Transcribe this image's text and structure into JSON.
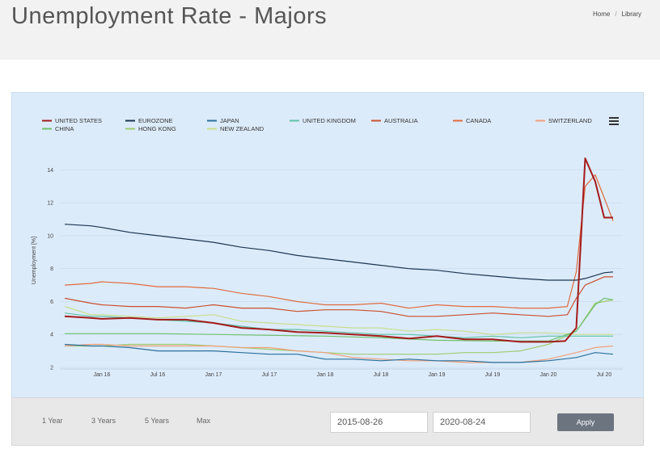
{
  "header": {
    "title": "Unemployment Rate - Majors",
    "breadcrumb": [
      "Home",
      "Library"
    ]
  },
  "controls": {
    "ranges": [
      "1 Year",
      "3 Years",
      "5 Years",
      "Max"
    ],
    "start_date": "2015-08-26",
    "end_date": "2020-08-24",
    "apply_label": "Apply"
  },
  "chart_data": {
    "type": "line",
    "title": "",
    "xlabel": "",
    "ylabel": "Unemployment [%]",
    "ylim": [
      2,
      15
    ],
    "xlim": [
      2015.667,
      2020.667
    ],
    "y_ticks": [
      2,
      4,
      6,
      8,
      10,
      12,
      14
    ],
    "x_ticks": [
      {
        "label": "Jan 16",
        "x": 2016.0
      },
      {
        "label": "Jul 16",
        "x": 2016.5
      },
      {
        "label": "Jan 17",
        "x": 2017.0
      },
      {
        "label": "Jul 17",
        "x": 2017.5
      },
      {
        "label": "Jan 18",
        "x": 2018.0
      },
      {
        "label": "Jul 18",
        "x": 2018.5
      },
      {
        "label": "Jan 19",
        "x": 2019.0
      },
      {
        "label": "Jul 19",
        "x": 2019.5
      },
      {
        "label": "Jan 20",
        "x": 2020.0
      },
      {
        "label": "Jul 20",
        "x": 2020.5
      }
    ],
    "grid": true,
    "legend_position": "top",
    "series": [
      {
        "name": "UNITED STATES",
        "color": "#a31b1b",
        "width": 2,
        "points": [
          [
            2015.667,
            5.1
          ],
          [
            2015.9,
            5.0
          ],
          [
            2016.0,
            4.95
          ],
          [
            2016.25,
            5.0
          ],
          [
            2016.5,
            4.9
          ],
          [
            2016.75,
            4.9
          ],
          [
            2017.0,
            4.7
          ],
          [
            2017.25,
            4.4
          ],
          [
            2017.5,
            4.3
          ],
          [
            2017.75,
            4.15
          ],
          [
            2018.0,
            4.1
          ],
          [
            2018.25,
            4.0
          ],
          [
            2018.5,
            3.9
          ],
          [
            2018.75,
            3.75
          ],
          [
            2019.0,
            3.9
          ],
          [
            2019.25,
            3.7
          ],
          [
            2019.5,
            3.7
          ],
          [
            2019.75,
            3.55
          ],
          [
            2020.0,
            3.55
          ],
          [
            2020.15,
            3.6
          ],
          [
            2020.25,
            4.4
          ],
          [
            2020.33,
            14.7
          ],
          [
            2020.42,
            13.3
          ],
          [
            2020.5,
            11.1
          ],
          [
            2020.58,
            11.1
          ]
        ]
      },
      {
        "name": "EUROZONE",
        "color": "#1a3550",
        "width": 1.2,
        "points": [
          [
            2015.667,
            10.7
          ],
          [
            2015.9,
            10.6
          ],
          [
            2016.0,
            10.5
          ],
          [
            2016.25,
            10.2
          ],
          [
            2016.5,
            10.0
          ],
          [
            2016.75,
            9.8
          ],
          [
            2017.0,
            9.6
          ],
          [
            2017.25,
            9.3
          ],
          [
            2017.5,
            9.1
          ],
          [
            2017.75,
            8.8
          ],
          [
            2018.0,
            8.6
          ],
          [
            2018.25,
            8.4
          ],
          [
            2018.5,
            8.2
          ],
          [
            2018.75,
            8.0
          ],
          [
            2019.0,
            7.9
          ],
          [
            2019.25,
            7.7
          ],
          [
            2019.5,
            7.55
          ],
          [
            2019.75,
            7.4
          ],
          [
            2020.0,
            7.3
          ],
          [
            2020.25,
            7.3
          ],
          [
            2020.33,
            7.4
          ],
          [
            2020.5,
            7.75
          ],
          [
            2020.58,
            7.8
          ]
        ]
      },
      {
        "name": "JAPAN",
        "color": "#2a6f9c",
        "width": 1.2,
        "points": [
          [
            2015.667,
            3.4
          ],
          [
            2015.9,
            3.3
          ],
          [
            2016.0,
            3.3
          ],
          [
            2016.25,
            3.2
          ],
          [
            2016.5,
            3.0
          ],
          [
            2016.75,
            3.0
          ],
          [
            2017.0,
            3.0
          ],
          [
            2017.25,
            2.9
          ],
          [
            2017.5,
            2.8
          ],
          [
            2017.75,
            2.8
          ],
          [
            2018.0,
            2.5
          ],
          [
            2018.25,
            2.5
          ],
          [
            2018.5,
            2.4
          ],
          [
            2018.75,
            2.5
          ],
          [
            2019.0,
            2.4
          ],
          [
            2019.25,
            2.4
          ],
          [
            2019.5,
            2.3
          ],
          [
            2019.75,
            2.3
          ],
          [
            2020.0,
            2.4
          ],
          [
            2020.25,
            2.6
          ],
          [
            2020.42,
            2.9
          ],
          [
            2020.58,
            2.8
          ]
        ]
      },
      {
        "name": "UNITED KINGDOM",
        "color": "#5fc3a6",
        "width": 1.2,
        "points": [
          [
            2015.667,
            5.3
          ],
          [
            2015.9,
            5.1
          ],
          [
            2016.0,
            5.1
          ],
          [
            2016.25,
            5.0
          ],
          [
            2016.5,
            4.9
          ],
          [
            2016.75,
            4.8
          ],
          [
            2017.0,
            4.7
          ],
          [
            2017.25,
            4.5
          ],
          [
            2017.5,
            4.3
          ],
          [
            2017.75,
            4.3
          ],
          [
            2018.0,
            4.2
          ],
          [
            2018.25,
            4.1
          ],
          [
            2018.5,
            4.0
          ],
          [
            2018.75,
            4.0
          ],
          [
            2019.0,
            3.9
          ],
          [
            2019.25,
            3.8
          ],
          [
            2019.5,
            3.9
          ],
          [
            2019.75,
            3.8
          ],
          [
            2020.0,
            3.9
          ],
          [
            2020.25,
            3.9
          ],
          [
            2020.5,
            3.9
          ],
          [
            2020.58,
            3.9
          ]
        ]
      },
      {
        "name": "AUSTRALIA",
        "color": "#c9502d",
        "width": 1.2,
        "points": [
          [
            2015.667,
            6.2
          ],
          [
            2015.9,
            5.9
          ],
          [
            2016.0,
            5.8
          ],
          [
            2016.25,
            5.7
          ],
          [
            2016.5,
            5.7
          ],
          [
            2016.75,
            5.6
          ],
          [
            2017.0,
            5.8
          ],
          [
            2017.25,
            5.6
          ],
          [
            2017.5,
            5.6
          ],
          [
            2017.75,
            5.4
          ],
          [
            2018.0,
            5.5
          ],
          [
            2018.25,
            5.5
          ],
          [
            2018.5,
            5.4
          ],
          [
            2018.75,
            5.1
          ],
          [
            2019.0,
            5.1
          ],
          [
            2019.25,
            5.2
          ],
          [
            2019.5,
            5.3
          ],
          [
            2019.75,
            5.2
          ],
          [
            2020.0,
            5.1
          ],
          [
            2020.17,
            5.2
          ],
          [
            2020.25,
            6.2
          ],
          [
            2020.33,
            7.0
          ],
          [
            2020.5,
            7.5
          ],
          [
            2020.58,
            7.5
          ]
        ]
      },
      {
        "name": "CANADA",
        "color": "#e06b3e",
        "width": 1.2,
        "points": [
          [
            2015.667,
            7.0
          ],
          [
            2015.9,
            7.1
          ],
          [
            2016.0,
            7.2
          ],
          [
            2016.25,
            7.1
          ],
          [
            2016.5,
            6.9
          ],
          [
            2016.75,
            6.9
          ],
          [
            2017.0,
            6.8
          ],
          [
            2017.25,
            6.5
          ],
          [
            2017.5,
            6.3
          ],
          [
            2017.75,
            6.0
          ],
          [
            2018.0,
            5.8
          ],
          [
            2018.25,
            5.8
          ],
          [
            2018.5,
            5.9
          ],
          [
            2018.75,
            5.6
          ],
          [
            2019.0,
            5.8
          ],
          [
            2019.25,
            5.7
          ],
          [
            2019.5,
            5.7
          ],
          [
            2019.75,
            5.6
          ],
          [
            2020.0,
            5.6
          ],
          [
            2020.17,
            5.7
          ],
          [
            2020.25,
            7.8
          ],
          [
            2020.33,
            13.0
          ],
          [
            2020.42,
            13.7
          ],
          [
            2020.5,
            12.3
          ],
          [
            2020.58,
            10.9
          ]
        ]
      },
      {
        "name": "SWITZERLAND",
        "color": "#f0a07a",
        "width": 1.2,
        "points": [
          [
            2015.667,
            3.3
          ],
          [
            2015.9,
            3.4
          ],
          [
            2016.0,
            3.4
          ],
          [
            2016.25,
            3.3
          ],
          [
            2016.5,
            3.3
          ],
          [
            2016.75,
            3.3
          ],
          [
            2017.0,
            3.3
          ],
          [
            2017.25,
            3.2
          ],
          [
            2017.5,
            3.2
          ],
          [
            2017.75,
            3.0
          ],
          [
            2018.0,
            2.9
          ],
          [
            2018.25,
            2.6
          ],
          [
            2018.5,
            2.5
          ],
          [
            2018.75,
            2.4
          ],
          [
            2019.0,
            2.4
          ],
          [
            2019.25,
            2.3
          ],
          [
            2019.5,
            2.3
          ],
          [
            2019.75,
            2.3
          ],
          [
            2020.0,
            2.5
          ],
          [
            2020.25,
            2.9
          ],
          [
            2020.42,
            3.2
          ],
          [
            2020.58,
            3.3
          ]
        ]
      },
      {
        "name": "CHINA",
        "color": "#6fc16b",
        "width": 1.2,
        "points": [
          [
            2015.667,
            4.05
          ],
          [
            2016.0,
            4.05
          ],
          [
            2016.5,
            4.05
          ],
          [
            2017.0,
            4.0
          ],
          [
            2017.5,
            3.95
          ],
          [
            2018.0,
            3.9
          ],
          [
            2018.5,
            3.8
          ],
          [
            2019.0,
            3.65
          ],
          [
            2019.5,
            3.6
          ],
          [
            2020.0,
            3.6
          ],
          [
            2020.25,
            4.2
          ],
          [
            2020.42,
            5.8
          ],
          [
            2020.5,
            6.2
          ],
          [
            2020.58,
            6.1
          ]
        ]
      },
      {
        "name": "HONG KONG",
        "color": "#9ccc6e",
        "width": 1.2,
        "points": [
          [
            2015.667,
            3.3
          ],
          [
            2016.0,
            3.3
          ],
          [
            2016.25,
            3.4
          ],
          [
            2016.5,
            3.4
          ],
          [
            2016.75,
            3.4
          ],
          [
            2017.0,
            3.3
          ],
          [
            2017.25,
            3.2
          ],
          [
            2017.5,
            3.1
          ],
          [
            2017.75,
            3.0
          ],
          [
            2018.0,
            2.9
          ],
          [
            2018.25,
            2.8
          ],
          [
            2018.5,
            2.8
          ],
          [
            2018.75,
            2.8
          ],
          [
            2019.0,
            2.8
          ],
          [
            2019.25,
            2.9
          ],
          [
            2019.5,
            2.9
          ],
          [
            2019.75,
            3.0
          ],
          [
            2020.0,
            3.4
          ],
          [
            2020.25,
            4.2
          ],
          [
            2020.42,
            5.9
          ],
          [
            2020.58,
            6.1
          ]
        ]
      },
      {
        "name": "NEW ZEALAND",
        "color": "#c8df8a",
        "width": 1.2,
        "points": [
          [
            2015.667,
            5.7
          ],
          [
            2015.9,
            5.2
          ],
          [
            2016.0,
            5.2
          ],
          [
            2016.25,
            5.1
          ],
          [
            2016.5,
            5.0
          ],
          [
            2016.75,
            5.1
          ],
          [
            2017.0,
            5.2
          ],
          [
            2017.25,
            4.8
          ],
          [
            2017.5,
            4.7
          ],
          [
            2017.75,
            4.6
          ],
          [
            2018.0,
            4.5
          ],
          [
            2018.25,
            4.4
          ],
          [
            2018.5,
            4.4
          ],
          [
            2018.75,
            4.2
          ],
          [
            2019.0,
            4.3
          ],
          [
            2019.25,
            4.2
          ],
          [
            2019.5,
            4.0
          ],
          [
            2019.75,
            4.1
          ],
          [
            2020.0,
            4.1
          ],
          [
            2020.25,
            4.0
          ],
          [
            2020.42,
            4.0
          ],
          [
            2020.58,
            4.0
          ]
        ]
      }
    ]
  }
}
